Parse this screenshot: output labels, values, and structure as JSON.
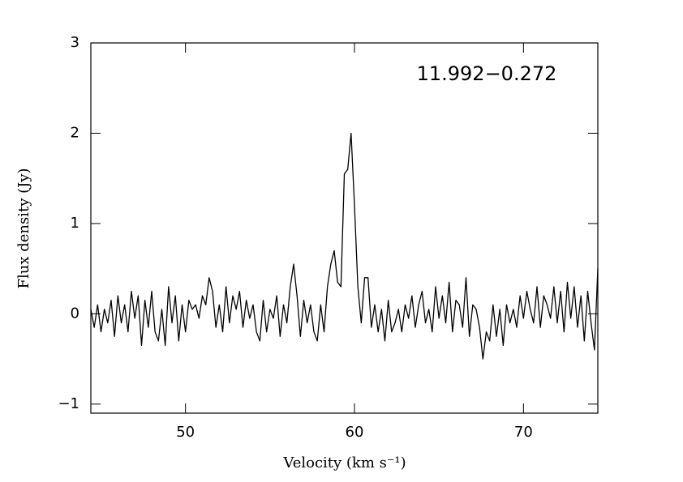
{
  "chart_data": {
    "type": "line",
    "annotation": "11.992−0.272",
    "xlabel": "Velocity (km s⁻¹)",
    "ylabel": "Flux density (Jy)",
    "xlim": [
      44.4,
      74.4
    ],
    "ylim": [
      -1.1,
      3
    ],
    "xticks": [
      50,
      60,
      70
    ],
    "yticks": [
      {
        "value": -1,
        "label": "−1"
      },
      0,
      1,
      2,
      3
    ],
    "x": [
      44.4,
      44.6,
      44.8,
      45.0,
      45.2,
      45.4,
      45.6,
      45.8,
      46.0,
      46.2,
      46.4,
      46.6,
      46.8,
      47.0,
      47.2,
      47.4,
      47.6,
      47.8,
      48.0,
      48.2,
      48.4,
      48.6,
      48.8,
      49.0,
      49.2,
      49.4,
      49.6,
      49.8,
      50.0,
      50.2,
      50.4,
      50.6,
      50.8,
      51.0,
      51.2,
      51.4,
      51.6,
      51.8,
      52.0,
      52.2,
      52.4,
      52.6,
      52.8,
      53.0,
      53.2,
      53.4,
      53.6,
      53.8,
      54.0,
      54.2,
      54.4,
      54.6,
      54.8,
      55.0,
      55.2,
      55.4,
      55.6,
      55.8,
      56.0,
      56.2,
      56.4,
      56.6,
      56.8,
      57.0,
      57.2,
      57.4,
      57.6,
      57.8,
      58.0,
      58.2,
      58.4,
      58.6,
      58.8,
      59.0,
      59.2,
      59.4,
      59.6,
      59.8,
      60.0,
      60.2,
      60.4,
      60.6,
      60.8,
      61.0,
      61.2,
      61.4,
      61.6,
      61.8,
      62.0,
      62.2,
      62.4,
      62.6,
      62.8,
      63.0,
      63.2,
      63.4,
      63.6,
      63.8,
      64.0,
      64.2,
      64.4,
      64.6,
      64.8,
      65.0,
      65.2,
      65.4,
      65.6,
      65.8,
      66.0,
      66.2,
      66.4,
      66.6,
      66.8,
      67.0,
      67.2,
      67.4,
      67.6,
      67.8,
      68.0,
      68.2,
      68.4,
      68.6,
      68.8,
      69.0,
      69.2,
      69.4,
      69.6,
      69.8,
      70.0,
      70.2,
      70.4,
      70.6,
      70.8,
      71.0,
      71.2,
      71.4,
      71.6,
      71.8,
      72.0,
      72.2,
      72.4,
      72.6,
      72.8,
      73.0,
      73.2,
      73.4,
      73.6,
      73.8,
      74.0,
      74.2,
      74.4
    ],
    "series": [
      {
        "color": "#000000",
        "values": [
          0.05,
          -0.15,
          0.1,
          -0.2,
          0.05,
          -0.1,
          0.15,
          -0.25,
          0.2,
          -0.1,
          0.1,
          -0.2,
          0.25,
          -0.05,
          0.2,
          -0.35,
          0.15,
          -0.15,
          0.25,
          -0.2,
          -0.3,
          0.05,
          -0.35,
          0.3,
          -0.1,
          0.2,
          -0.3,
          0.1,
          -0.2,
          0.15,
          0.05,
          0.1,
          -0.05,
          0.2,
          0.1,
          0.4,
          0.25,
          -0.15,
          0.1,
          -0.2,
          0.3,
          -0.1,
          0.2,
          0.05,
          0.25,
          -0.15,
          0.15,
          -0.05,
          0.1,
          -0.2,
          -0.3,
          0.15,
          -0.2,
          0.05,
          -0.05,
          0.2,
          -0.25,
          0.1,
          -0.1,
          0.3,
          0.55,
          0.2,
          -0.25,
          0.15,
          -0.1,
          0.1,
          -0.2,
          -0.3,
          0.1,
          -0.2,
          0.3,
          0.55,
          0.7,
          0.35,
          0.3,
          1.55,
          1.6,
          2.0,
          1.2,
          0.3,
          -0.1,
          0.4,
          0.4,
          -0.15,
          0.1,
          -0.2,
          0.05,
          -0.3,
          0.15,
          -0.2,
          -0.1,
          0.05,
          -0.2,
          0.1,
          -0.05,
          0.2,
          -0.15,
          0.1,
          0.25,
          -0.1,
          0.05,
          -0.2,
          0.3,
          -0.05,
          0.2,
          -0.1,
          0.35,
          -0.2,
          0.15,
          0.1,
          -0.15,
          0.4,
          -0.25,
          0.1,
          0.05,
          -0.15,
          -0.5,
          -0.2,
          -0.3,
          0.1,
          -0.25,
          0.05,
          -0.35,
          0.1,
          -0.1,
          0.05,
          -0.15,
          0.2,
          -0.05,
          0.25,
          0.05,
          -0.1,
          0.3,
          -0.15,
          0.2,
          0.1,
          -0.05,
          0.3,
          -0.1,
          0.25,
          -0.2,
          0.35,
          -0.05,
          0.3,
          -0.15,
          0.2,
          -0.3,
          0.25,
          -0.1,
          -0.4,
          0.5
        ]
      }
    ]
  }
}
